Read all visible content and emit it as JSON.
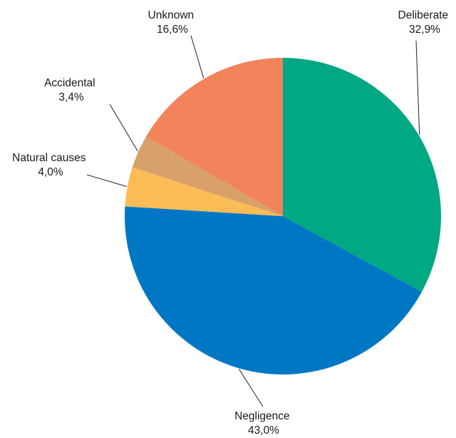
{
  "chart_data": {
    "type": "pie",
    "start_angle_deg": 90,
    "direction": "clockwise",
    "slices": [
      {
        "label": "Deliberate",
        "value": 32.9,
        "value_text": "32,9%",
        "color": "#00a884"
      },
      {
        "label": "Negligence",
        "value": 43.0,
        "value_text": "43,0%",
        "color": "#0077c4"
      },
      {
        "label": "Natural causes",
        "value": 4.0,
        "value_text": "4,0%",
        "color": "#fcbc55"
      },
      {
        "label": "Accidental",
        "value": 3.4,
        "value_text": "3,4%",
        "color": "#d8a06a"
      },
      {
        "label": "Unknown",
        "value": 16.6,
        "value_text": "16,6%",
        "color": "#f2835a"
      }
    ]
  }
}
